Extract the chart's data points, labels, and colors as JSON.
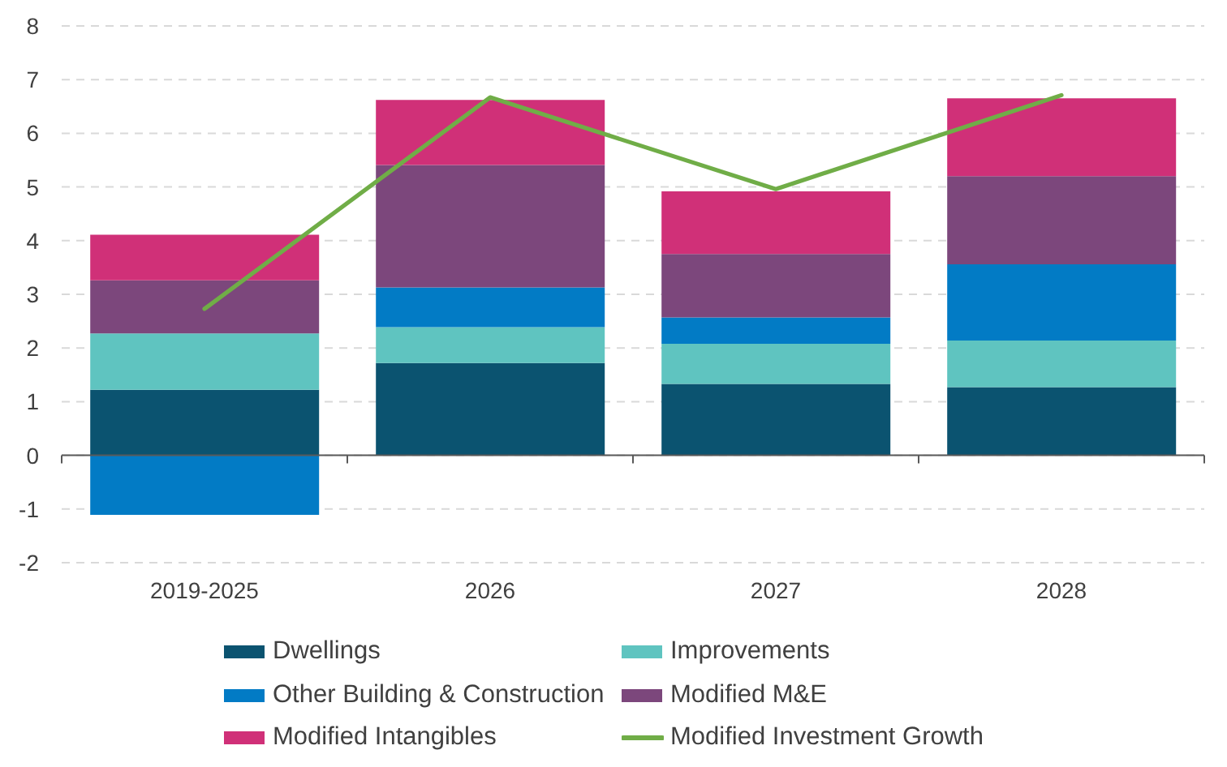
{
  "chart_data": {
    "type": "bar",
    "stacked": true,
    "categories": [
      "2019-2025",
      "2026",
      "2027",
      "2028"
    ],
    "series": [
      {
        "name": "Dwellings",
        "color": "#0b5370",
        "values": [
          1.22,
          1.72,
          1.33,
          1.27
        ]
      },
      {
        "name": "Improvements",
        "color": "#5fc4c0",
        "values": [
          1.05,
          0.67,
          0.75,
          0.87
        ]
      },
      {
        "name": "Other Building & Construction",
        "color": "#027bc5",
        "values": [
          -1.11,
          0.74,
          0.49,
          1.42
        ]
      },
      {
        "name": "Modified M&E",
        "color": "#7c477c",
        "values": [
          0.99,
          2.28,
          1.18,
          1.64
        ]
      },
      {
        "name": "Modified Intangibles",
        "color": "#d03078",
        "values": [
          0.85,
          1.21,
          1.17,
          1.45
        ]
      },
      {
        "name": "Modified Investment Growth",
        "type": "line",
        "color": "#70ad47",
        "values": [
          2.73,
          6.67,
          4.96,
          6.71
        ]
      }
    ],
    "ylim": [
      -2,
      8
    ],
    "yticks": [
      -2,
      -1,
      0,
      1,
      2,
      3,
      4,
      5,
      6,
      7,
      8
    ],
    "grid": "y",
    "legend": "bottom"
  }
}
